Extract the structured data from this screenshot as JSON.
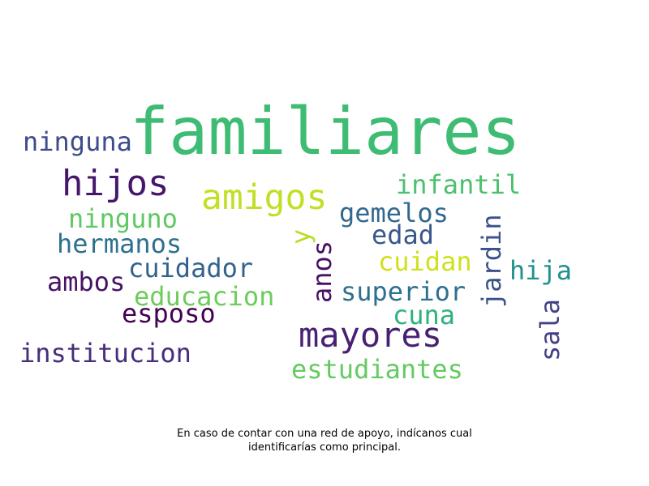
{
  "words": [
    {
      "text": "familiares",
      "color": "#3fbc73"
    },
    {
      "text": "hijos",
      "color": "#46166b"
    },
    {
      "text": "amigos",
      "color": "#c2df23"
    },
    {
      "text": "mayores",
      "color": "#482173"
    },
    {
      "text": "ninguna",
      "color": "#3e4c8a"
    },
    {
      "text": "infantil",
      "color": "#4ac16d"
    },
    {
      "text": "gemelos",
      "color": "#31688e"
    },
    {
      "text": "ninguno",
      "color": "#5ec962"
    },
    {
      "text": "edad",
      "color": "#38588c"
    },
    {
      "text": "jardin",
      "color": "#3b518b"
    },
    {
      "text": "hermanos",
      "color": "#2c718e"
    },
    {
      "text": "y",
      "color": "#b8de29"
    },
    {
      "text": "cuidador",
      "color": "#33638d"
    },
    {
      "text": "anos",
      "color": "#471063"
    },
    {
      "text": "cuidan",
      "color": "#d0e11c"
    },
    {
      "text": "hija",
      "color": "#21918c"
    },
    {
      "text": "ambos",
      "color": "#471365"
    },
    {
      "text": "educacion",
      "color": "#6ccd5a"
    },
    {
      "text": "superior",
      "color": "#2d708e"
    },
    {
      "text": "esposo",
      "color": "#440154"
    },
    {
      "text": "cuna",
      "color": "#2db27d"
    },
    {
      "text": "sala",
      "color": "#424086"
    },
    {
      "text": "institucion",
      "color": "#472d7b"
    },
    {
      "text": "estudiantes",
      "color": "#63cb5f"
    }
  ],
  "caption": {
    "line1": "En caso de contar con una red de apoyo, indícanos cual",
    "line2": "identificarías como principal."
  }
}
